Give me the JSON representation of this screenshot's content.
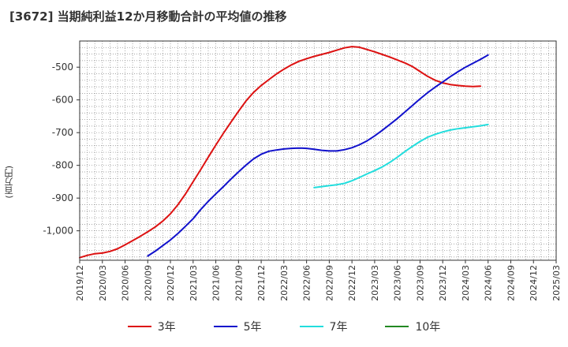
{
  "title": "[3672]  当期純利益12か月移動合計の平均値の推移",
  "unit_label": "(百万円)",
  "chart_data": {
    "type": "line",
    "x_categories": [
      "2019/12",
      "2020/03",
      "2020/06",
      "2020/09",
      "2020/12",
      "2021/03",
      "2021/06",
      "2021/09",
      "2021/12",
      "2022/03",
      "2022/06",
      "2022/09",
      "2022/12",
      "2023/03",
      "2023/06",
      "2023/09",
      "2023/12",
      "2024/03",
      "2024/06",
      "2024/09",
      "2024/12",
      "2025/03"
    ],
    "ylim": [
      -1090,
      -420
    ],
    "y_ticks": [
      -500,
      -600,
      -700,
      -800,
      -900,
      -1000
    ],
    "y_tick_labels": [
      "-500",
      "-600",
      "-700",
      "-800",
      "-900",
      "-1,000"
    ],
    "grid": true,
    "legend_position": "bottom",
    "series": [
      {
        "name": "3年",
        "color": "#dd1111",
        "points": [
          [
            "2019/12",
            -1082
          ],
          [
            "2020/01",
            -1075
          ],
          [
            "2020/02",
            -1070
          ],
          [
            "2020/03",
            -1068
          ],
          [
            "2020/04",
            -1063
          ],
          [
            "2020/05",
            -1055
          ],
          [
            "2020/06",
            -1043
          ],
          [
            "2020/07",
            -1030
          ],
          [
            "2020/08",
            -1017
          ],
          [
            "2020/09",
            -1003
          ],
          [
            "2020/10",
            -988
          ],
          [
            "2020/11",
            -970
          ],
          [
            "2020/12",
            -948
          ],
          [
            "2021/01",
            -920
          ],
          [
            "2021/02",
            -887
          ],
          [
            "2021/03",
            -850
          ],
          [
            "2021/04",
            -813
          ],
          [
            "2021/05",
            -775
          ],
          [
            "2021/06",
            -738
          ],
          [
            "2021/07",
            -702
          ],
          [
            "2021/08",
            -668
          ],
          [
            "2021/09",
            -635
          ],
          [
            "2021/10",
            -603
          ],
          [
            "2021/11",
            -577
          ],
          [
            "2021/12",
            -556
          ],
          [
            "2022/01",
            -538
          ],
          [
            "2022/02",
            -521
          ],
          [
            "2022/03",
            -506
          ],
          [
            "2022/04",
            -493
          ],
          [
            "2022/05",
            -482
          ],
          [
            "2022/06",
            -474
          ],
          [
            "2022/07",
            -467
          ],
          [
            "2022/08",
            -461
          ],
          [
            "2022/09",
            -455
          ],
          [
            "2022/10",
            -448
          ],
          [
            "2022/11",
            -441
          ],
          [
            "2022/12",
            -437
          ],
          [
            "2023/01",
            -439
          ],
          [
            "2023/02",
            -446
          ],
          [
            "2023/03",
            -453
          ],
          [
            "2023/04",
            -461
          ],
          [
            "2023/05",
            -469
          ],
          [
            "2023/06",
            -478
          ],
          [
            "2023/07",
            -487
          ],
          [
            "2023/08",
            -498
          ],
          [
            "2023/09",
            -513
          ],
          [
            "2023/10",
            -528
          ],
          [
            "2023/11",
            -540
          ],
          [
            "2023/12",
            -548
          ],
          [
            "2024/01",
            -553
          ],
          [
            "2024/02",
            -556
          ],
          [
            "2024/03",
            -558
          ],
          [
            "2024/04",
            -559
          ],
          [
            "2024/05",
            -558
          ]
        ]
      },
      {
        "name": "5年",
        "color": "#1111cc",
        "points": [
          [
            "2020/09",
            -1077
          ],
          [
            "2020/10",
            -1062
          ],
          [
            "2020/11",
            -1045
          ],
          [
            "2020/12",
            -1028
          ],
          [
            "2021/01",
            -1008
          ],
          [
            "2021/02",
            -986
          ],
          [
            "2021/03",
            -963
          ],
          [
            "2021/04",
            -935
          ],
          [
            "2021/05",
            -910
          ],
          [
            "2021/06",
            -887
          ],
          [
            "2021/07",
            -865
          ],
          [
            "2021/08",
            -842
          ],
          [
            "2021/09",
            -820
          ],
          [
            "2021/10",
            -799
          ],
          [
            "2021/11",
            -780
          ],
          [
            "2021/12",
            -766
          ],
          [
            "2022/01",
            -757
          ],
          [
            "2022/02",
            -753
          ],
          [
            "2022/03",
            -750
          ],
          [
            "2022/04",
            -748
          ],
          [
            "2022/05",
            -747
          ],
          [
            "2022/06",
            -748
          ],
          [
            "2022/07",
            -751
          ],
          [
            "2022/08",
            -754
          ],
          [
            "2022/09",
            -756
          ],
          [
            "2022/10",
            -756
          ],
          [
            "2022/11",
            -752
          ],
          [
            "2022/12",
            -746
          ],
          [
            "2023/01",
            -737
          ],
          [
            "2023/02",
            -725
          ],
          [
            "2023/03",
            -710
          ],
          [
            "2023/04",
            -693
          ],
          [
            "2023/05",
            -675
          ],
          [
            "2023/06",
            -657
          ],
          [
            "2023/07",
            -637
          ],
          [
            "2023/08",
            -617
          ],
          [
            "2023/09",
            -597
          ],
          [
            "2023/10",
            -578
          ],
          [
            "2023/11",
            -561
          ],
          [
            "2023/12",
            -545
          ],
          [
            "2024/01",
            -529
          ],
          [
            "2024/02",
            -514
          ],
          [
            "2024/03",
            -500
          ],
          [
            "2024/04",
            -488
          ],
          [
            "2024/05",
            -476
          ],
          [
            "2024/06",
            -463
          ]
        ]
      },
      {
        "name": "7年",
        "color": "#22dddd",
        "points": [
          [
            "2022/07",
            -868
          ],
          [
            "2022/08",
            -865
          ],
          [
            "2022/09",
            -862
          ],
          [
            "2022/10",
            -859
          ],
          [
            "2022/11",
            -855
          ],
          [
            "2022/12",
            -847
          ],
          [
            "2023/01",
            -837
          ],
          [
            "2023/02",
            -826
          ],
          [
            "2023/03",
            -816
          ],
          [
            "2023/04",
            -805
          ],
          [
            "2023/05",
            -791
          ],
          [
            "2023/06",
            -775
          ],
          [
            "2023/07",
            -758
          ],
          [
            "2023/08",
            -742
          ],
          [
            "2023/09",
            -727
          ],
          [
            "2023/10",
            -714
          ],
          [
            "2023/11",
            -705
          ],
          [
            "2023/12",
            -698
          ],
          [
            "2024/01",
            -692
          ],
          [
            "2024/02",
            -688
          ],
          [
            "2024/03",
            -685
          ],
          [
            "2024/04",
            -682
          ],
          [
            "2024/05",
            -679
          ],
          [
            "2024/06",
            -675
          ]
        ]
      },
      {
        "name": "10年",
        "color": "#228822",
        "points": []
      }
    ]
  }
}
